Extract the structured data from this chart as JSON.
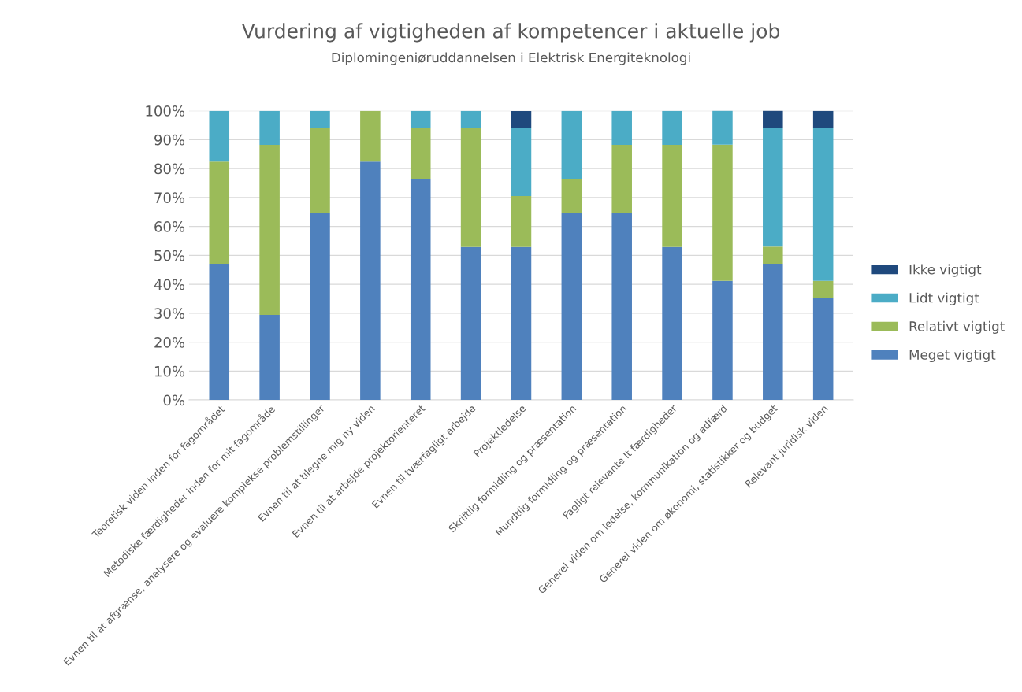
{
  "chart_data": {
    "type": "bar",
    "stacked": true,
    "title": "Vurdering af vigtigheden af kompetencer i aktuelle job",
    "subtitle": "Diplomingeniøruddannelsen i Elektrisk Energiteknologi",
    "categories": [
      "Teoretisk viden inden for fagområdet",
      "Metodiske færdigheder inden for mit fagområde",
      "Evnen til at afgrænse, analysere og evaluere komplekse problemstillinger",
      "Evnen til at tilegne mig ny viden",
      "Evnen til at arbejde projektorienteret",
      "Evnen til tværfagligt arbejde",
      "Projektledelse",
      "Skriftlig formidling og præsentation",
      "Mundtlig formidling og præsentation",
      "Fagligt relevante It færdigheder",
      "Generel viden om ledelse, kommunikation og adfærd",
      "Generel viden om økonomi, statistikker og budget",
      "Relevant juridisk viden"
    ],
    "series": [
      {
        "name": "Meget vigtigt",
        "color": "#4f81bd",
        "values": [
          47.1,
          29.4,
          64.7,
          82.4,
          76.5,
          52.9,
          52.9,
          64.7,
          64.7,
          52.9,
          41.2,
          47.1,
          35.3
        ]
      },
      {
        "name": "Relativt vigtigt",
        "color": "#9bbb59",
        "values": [
          35.3,
          58.8,
          29.4,
          17.6,
          17.6,
          41.2,
          17.6,
          11.8,
          23.5,
          35.3,
          47.1,
          5.9,
          5.9
        ]
      },
      {
        "name": "Lidt vigtigt",
        "color": "#4bacc6",
        "values": [
          17.6,
          11.8,
          5.9,
          0,
          5.9,
          5.9,
          23.5,
          23.5,
          11.8,
          11.8,
          11.8,
          41.2,
          52.9
        ]
      },
      {
        "name": "Ikke vigtigt",
        "color": "#1f497d",
        "values": [
          0,
          0,
          0,
          0,
          0,
          0,
          5.9,
          0,
          0,
          0,
          0,
          5.9,
          5.9
        ]
      }
    ],
    "ylim": [
      0,
      100
    ],
    "yticks": [
      {
        "value": 0,
        "label": "0%"
      },
      {
        "value": 10,
        "label": "10%"
      },
      {
        "value": 20,
        "label": "20%"
      },
      {
        "value": 30,
        "label": "30%"
      },
      {
        "value": 40,
        "label": "40%"
      },
      {
        "value": 50,
        "label": "50%"
      },
      {
        "value": 60,
        "label": "60%"
      },
      {
        "value": 70,
        "label": "70%"
      },
      {
        "value": 80,
        "label": "80%"
      },
      {
        "value": 90,
        "label": "90%"
      },
      {
        "value": 100,
        "label": "100%"
      }
    ],
    "grid": "y",
    "legend": "right"
  }
}
